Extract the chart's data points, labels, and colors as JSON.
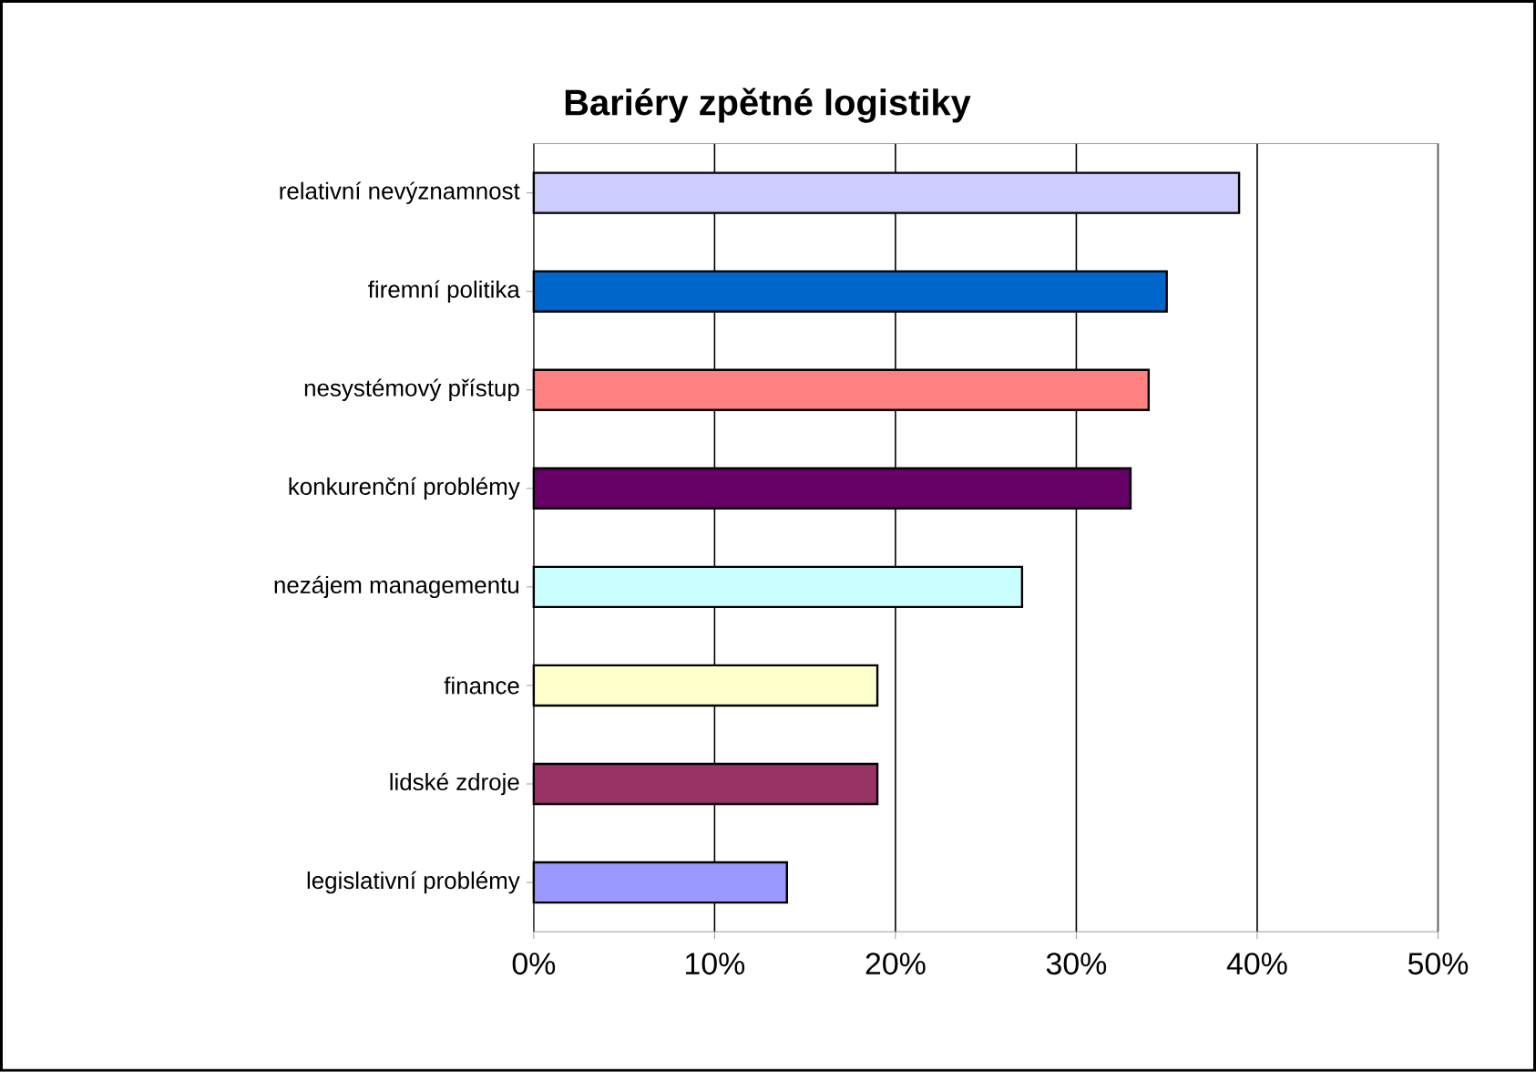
{
  "chart_data": {
    "type": "bar",
    "orientation": "horizontal",
    "title": "Bariéry zpětné logistiky",
    "categories": [
      "relativní nevýznamnost",
      "firemní politika",
      "nesystémový přístup",
      "konkurenční problémy",
      "nezájem managementu",
      "finance",
      "lidské zdroje",
      "legislativní problémy"
    ],
    "values": [
      39,
      35,
      34,
      33,
      27,
      19,
      19,
      14
    ],
    "colors": [
      "#ccccff",
      "#0066cc",
      "#ff8080",
      "#660066",
      "#ccffff",
      "#ffffcc",
      "#993366",
      "#9999ff"
    ],
    "xlim": [
      0,
      50
    ],
    "xticks": [
      {
        "value": 0,
        "label": "0%"
      },
      {
        "value": 10,
        "label": "10%"
      },
      {
        "value": 20,
        "label": "20%"
      },
      {
        "value": 30,
        "label": "30%"
      },
      {
        "value": 40,
        "label": "40%"
      },
      {
        "value": 50,
        "label": "50%"
      }
    ],
    "grid": "x"
  }
}
